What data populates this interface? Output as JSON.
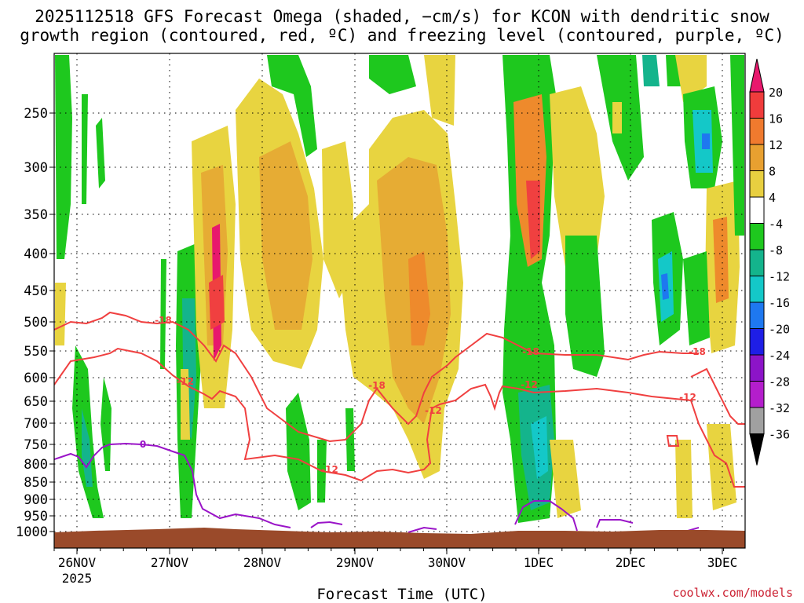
{
  "chart_data": {
    "type": "heatmap",
    "title": "2025112518 GFS Forecast Omega (shaded, −cm/s) for KCON with dendritic snow",
    "subtitle": "growth region (contoured, red, ºC) and freezing level (contoured, purple, ºC)",
    "xlabel": "Forecast Time (UTC)",
    "ylabel": "",
    "x_ticks": [
      "26NOV",
      "27NOV",
      "28NOV",
      "29NOV",
      "30NOV",
      "1DEC",
      "2DEC",
      "3DEC"
    ],
    "x_tick_sublabel": "2025",
    "y_ticks": [
      250,
      300,
      350,
      400,
      450,
      500,
      550,
      600,
      650,
      700,
      750,
      800,
      850,
      900,
      950,
      1000
    ],
    "ylim": [
      1000,
      200
    ],
    "grid": true,
    "colorbar": {
      "labels": [
        20,
        16,
        12,
        8,
        4,
        -4,
        -8,
        -12,
        -16,
        -20,
        -24,
        -28,
        -32,
        -36
      ],
      "colors": [
        "#e8186d",
        "#f03c3c",
        "#f07a2e",
        "#e8a030",
        "#e8cf40",
        "#ffffff",
        "#1ec81e",
        "#14b48c",
        "#14c8c8",
        "#1e78f0",
        "#1e1ee6",
        "#8c14c8",
        "#b41ecc",
        "#a0a0a0",
        "#000000"
      ]
    },
    "contour_labels": {
      "dgz": [
        "-18",
        "-12",
        "-18",
        "-12",
        "-12",
        "-18",
        "-12",
        "-18",
        "-12",
        "-12"
      ],
      "freezing": [
        "0"
      ]
    },
    "colors": {
      "dgz_contour": "#f04040",
      "freezing_contour": "#9a14c8",
      "ground": "#9a4a2a"
    }
  },
  "credit": "coolwx.com/models"
}
